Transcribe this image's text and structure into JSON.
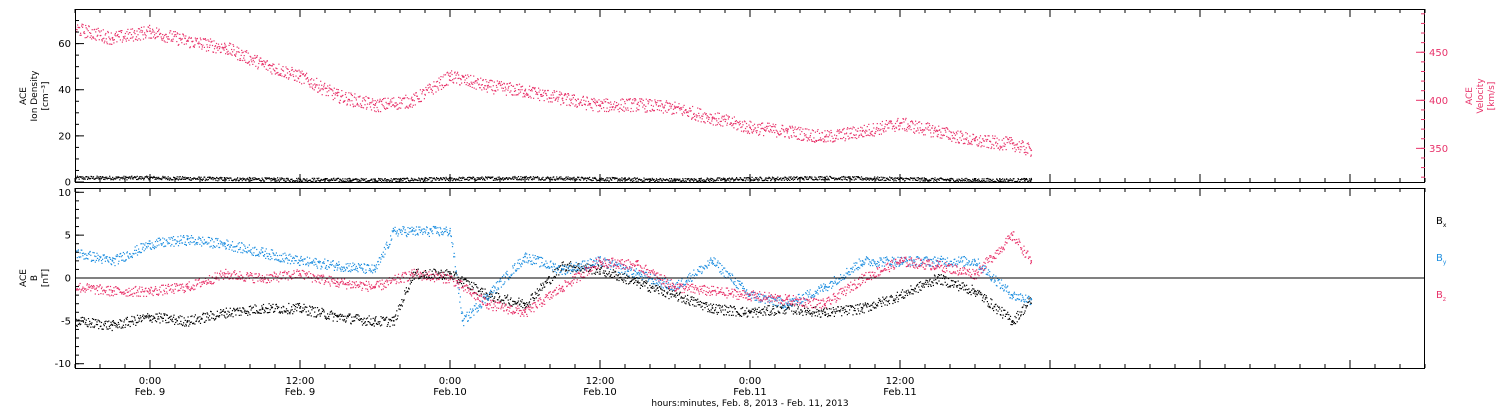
{
  "chart_data": [
    {
      "type": "scatter",
      "panel": "top",
      "ylabel_left": {
        "line1": "ACE",
        "line2": "Ion Density",
        "line3": "[cm⁻³]"
      },
      "ylabel_right": {
        "line1": "ACE",
        "line2": "Velocity",
        "line3": "[km/s]"
      },
      "ylim_left": [
        0,
        75
      ],
      "ylim_right": [
        315,
        495
      ],
      "yticks_left": [
        0,
        20,
        40,
        60
      ],
      "yticks_right": [
        350,
        400,
        450
      ],
      "xlim_hours": [
        -6,
        102
      ],
      "series": [
        {
          "axis": "left",
          "color": "#000000",
          "hours": [
            -6,
            0,
            6,
            12,
            18,
            24,
            30,
            36,
            42,
            48,
            54,
            60,
            66,
            70.5
          ],
          "values": [
            2,
            2,
            1.5,
            1.2,
            1,
            1.5,
            2,
            1.5,
            1,
            1.5,
            2,
            1.5,
            1,
            1
          ]
        },
        {
          "axis": "right",
          "color": "#e8326a",
          "hours": [
            -6,
            -3,
            0,
            3,
            6,
            9,
            12,
            15,
            18,
            21,
            24,
            27,
            30,
            33,
            36,
            39,
            42,
            45,
            48,
            51,
            54,
            57,
            60,
            63,
            66,
            69,
            70.5
          ],
          "values": [
            475,
            465,
            472,
            462,
            455,
            438,
            425,
            405,
            395,
            400,
            425,
            415,
            410,
            402,
            395,
            396,
            392,
            382,
            372,
            368,
            362,
            368,
            376,
            368,
            358,
            355,
            348
          ]
        }
      ]
    },
    {
      "type": "scatter",
      "panel": "bottom",
      "ylabel": {
        "line1": "ACE",
        "line2": "B",
        "line3": "[nT]"
      },
      "ylim": [
        -10.5,
        10.5
      ],
      "yticks": [
        -10,
        -5,
        0,
        5,
        10
      ],
      "xlim_hours": [
        -6,
        102
      ],
      "legend": [
        {
          "name": "B",
          "sub": "x",
          "color": "#000000"
        },
        {
          "name": "B",
          "sub": "y",
          "color": "#1f8fe0"
        },
        {
          "name": "B",
          "sub": "z",
          "color": "#e8326a"
        }
      ],
      "series": [
        {
          "name": "Bx",
          "color": "#000000",
          "hours": [
            -6,
            -3,
            0,
            3,
            6,
            9,
            12,
            15,
            18,
            19.5,
            21,
            24,
            27,
            30,
            33,
            36,
            39,
            42,
            45,
            48,
            51,
            54,
            57,
            60,
            63,
            66,
            69,
            70.5
          ],
          "values": [
            -5,
            -5.5,
            -4.5,
            -5,
            -4,
            -3.5,
            -3.5,
            -4.5,
            -5,
            -5,
            0.5,
            0.5,
            -2,
            -3,
            1.5,
            1,
            -0.5,
            -2,
            -3.5,
            -4,
            -3.5,
            -4,
            -3.5,
            -2,
            0,
            -1.5,
            -5,
            -2.5
          ]
        },
        {
          "name": "By",
          "color": "#1f8fe0",
          "hours": [
            -6,
            -3,
            0,
            3,
            6,
            9,
            12,
            15,
            18,
            19.5,
            21,
            24,
            25,
            27,
            30,
            33,
            36,
            39,
            42,
            45,
            48,
            51,
            54,
            57,
            60,
            63,
            66,
            69,
            70.5
          ],
          "values": [
            3,
            2,
            4,
            4.5,
            4,
            3,
            2,
            1.5,
            1,
            5.5,
            5.5,
            5.5,
            -5,
            -2,
            2.5,
            1,
            2,
            0.5,
            -1,
            2,
            -2,
            -3,
            -1,
            2,
            2,
            2,
            2,
            -2,
            -2.5
          ]
        },
        {
          "name": "Bz",
          "color": "#e8326a",
          "hours": [
            -6,
            -3,
            0,
            3,
            6,
            9,
            12,
            15,
            18,
            21,
            24,
            27,
            30,
            33,
            36,
            39,
            42,
            45,
            48,
            51,
            54,
            57,
            60,
            63,
            66,
            69,
            70.5
          ],
          "values": [
            -1,
            -1.5,
            -1.5,
            -1,
            0.5,
            0,
            0.5,
            -0.5,
            -1,
            0.5,
            0,
            -3,
            -4,
            -1,
            2,
            1.5,
            -1,
            -1.5,
            -2,
            -2.5,
            -3,
            0,
            2,
            1.5,
            0.5,
            5,
            2
          ]
        }
      ]
    }
  ],
  "xaxis": {
    "ticks": [
      {
        "hour": 0,
        "time": "0:00",
        "date": "Feb. 9"
      },
      {
        "hour": 12,
        "time": "12:00",
        "date": "Feb. 9"
      },
      {
        "hour": 24,
        "time": "0:00",
        "date": "Feb.10"
      },
      {
        "hour": 36,
        "time": "12:00",
        "date": "Feb.10"
      },
      {
        "hour": 48,
        "time": "0:00",
        "date": "Feb.11"
      },
      {
        "hour": 60,
        "time": "12:00",
        "date": "Feb.11"
      }
    ],
    "label": "hours:minutes, Feb.  8, 2013 - Feb. 11, 2013"
  },
  "colors": {
    "density": "#000000",
    "velocity": "#e8326a",
    "bx": "#000000",
    "by": "#1f8fe0",
    "bz": "#e8326a"
  }
}
